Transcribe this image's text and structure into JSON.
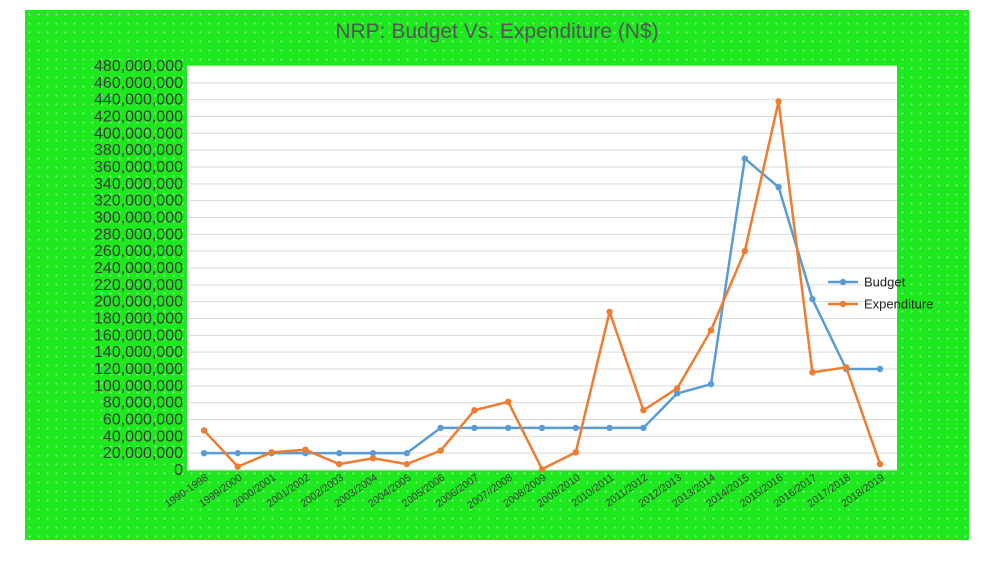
{
  "chart_data": {
    "type": "line",
    "title": "NRP: Budget Vs. Expenditure (N$)",
    "xlabel": "",
    "ylabel": "",
    "ylim": [
      0,
      480000000
    ],
    "ytick_step": 20000000,
    "grid": true,
    "legend_position": "right",
    "categories": [
      "1990-1998",
      "1999/2000",
      "2000/2001",
      "2001/2002",
      "2002/2003",
      "2003/2004",
      "2004/2005",
      "2005/2006",
      "2006/2007",
      "2007//2008",
      "2008/2009",
      "2009/2010",
      "2010/2011",
      "2011/2012",
      "2012/2013",
      "2013/2014",
      "2014/2015",
      "2015/2016",
      "2016/2017",
      "2017/2018",
      "2018/2019"
    ],
    "series": [
      {
        "name": "Budget",
        "color": "#5b9bd5",
        "values": [
          20000000,
          20000000,
          20000000,
          20000000,
          20000000,
          20000000,
          20000000,
          50000000,
          50000000,
          50000000,
          50000000,
          50000000,
          50000000,
          50000000,
          91000000,
          102000000,
          370000000,
          336000000,
          203000000,
          120000000,
          120000000
        ]
      },
      {
        "name": "Expenditure",
        "color": "#ed7d31",
        "values": [
          47000000,
          4000000,
          21000000,
          24000000,
          7000000,
          14000000,
          7000000,
          23000000,
          71000000,
          81000000,
          1000000,
          21000000,
          188000000,
          71000000,
          97000000,
          166000000,
          260000000,
          438000000,
          116000000,
          122000000,
          7000000
        ]
      }
    ]
  }
}
